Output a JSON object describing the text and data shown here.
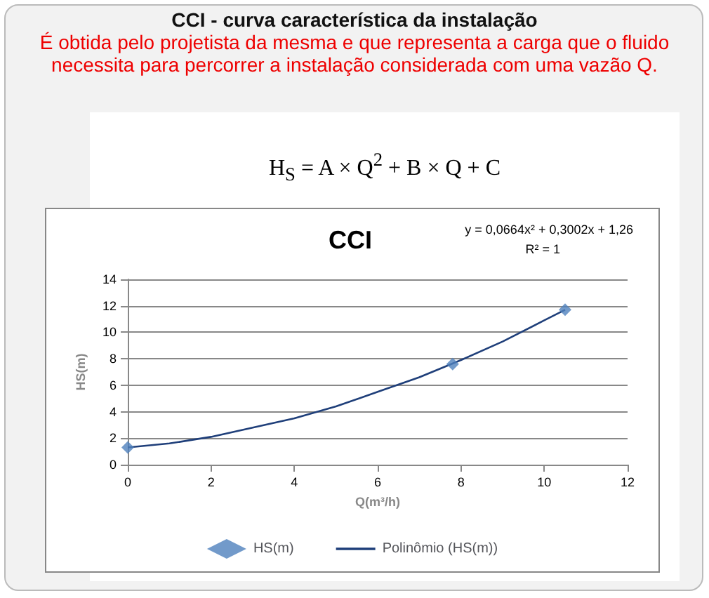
{
  "chart_data": {
    "type": "scatter",
    "title": "CCI - curva característica da instalação",
    "subtitle": "É obtida pelo projetista da mesma e que representa a carga que o fluido necessita para percorrer a instalação considerada com uma vazão Q.",
    "annotations": [
      "CCI",
      "H$_{S}$ = A × Q$^{2}$ + B × Q + C",
      "y = 0,0664x² + 0,3002x + 1,26",
      "R² = 1"
    ],
    "xlabel": "Q(m³/h)",
    "ylabel": "HS(m)",
    "series": [
      {
        "name": "HS(m)",
        "color": "#4f81bd",
        "marker": "diamond",
        "x": [
          0,
          7.8,
          10.5
        ],
        "values": [
          1.3,
          7.6,
          11.7
        ]
      },
      {
        "name": "Polinômio (HS(m))",
        "type": "line",
        "color": "#1f3f7a",
        "marker": "none",
        "line_style": "solid",
        "x": [
          0,
          1,
          2,
          3,
          4,
          5,
          6,
          7,
          8,
          9,
          10,
          10.5
        ],
        "values": [
          1.3,
          1.6,
          2.1,
          2.8,
          3.5,
          4.4,
          5.5,
          6.6,
          7.9,
          9.3,
          10.9,
          11.7
        ]
      }
    ],
    "xlim": [
      0,
      12
    ],
    "xticks": [
      0,
      2,
      4,
      6,
      8,
      10,
      12
    ],
    "ylim": [
      0,
      14
    ],
    "yticks": [
      0,
      2,
      4,
      6,
      8,
      10,
      12,
      14
    ],
    "grid": "y",
    "legend": "bottom"
  }
}
